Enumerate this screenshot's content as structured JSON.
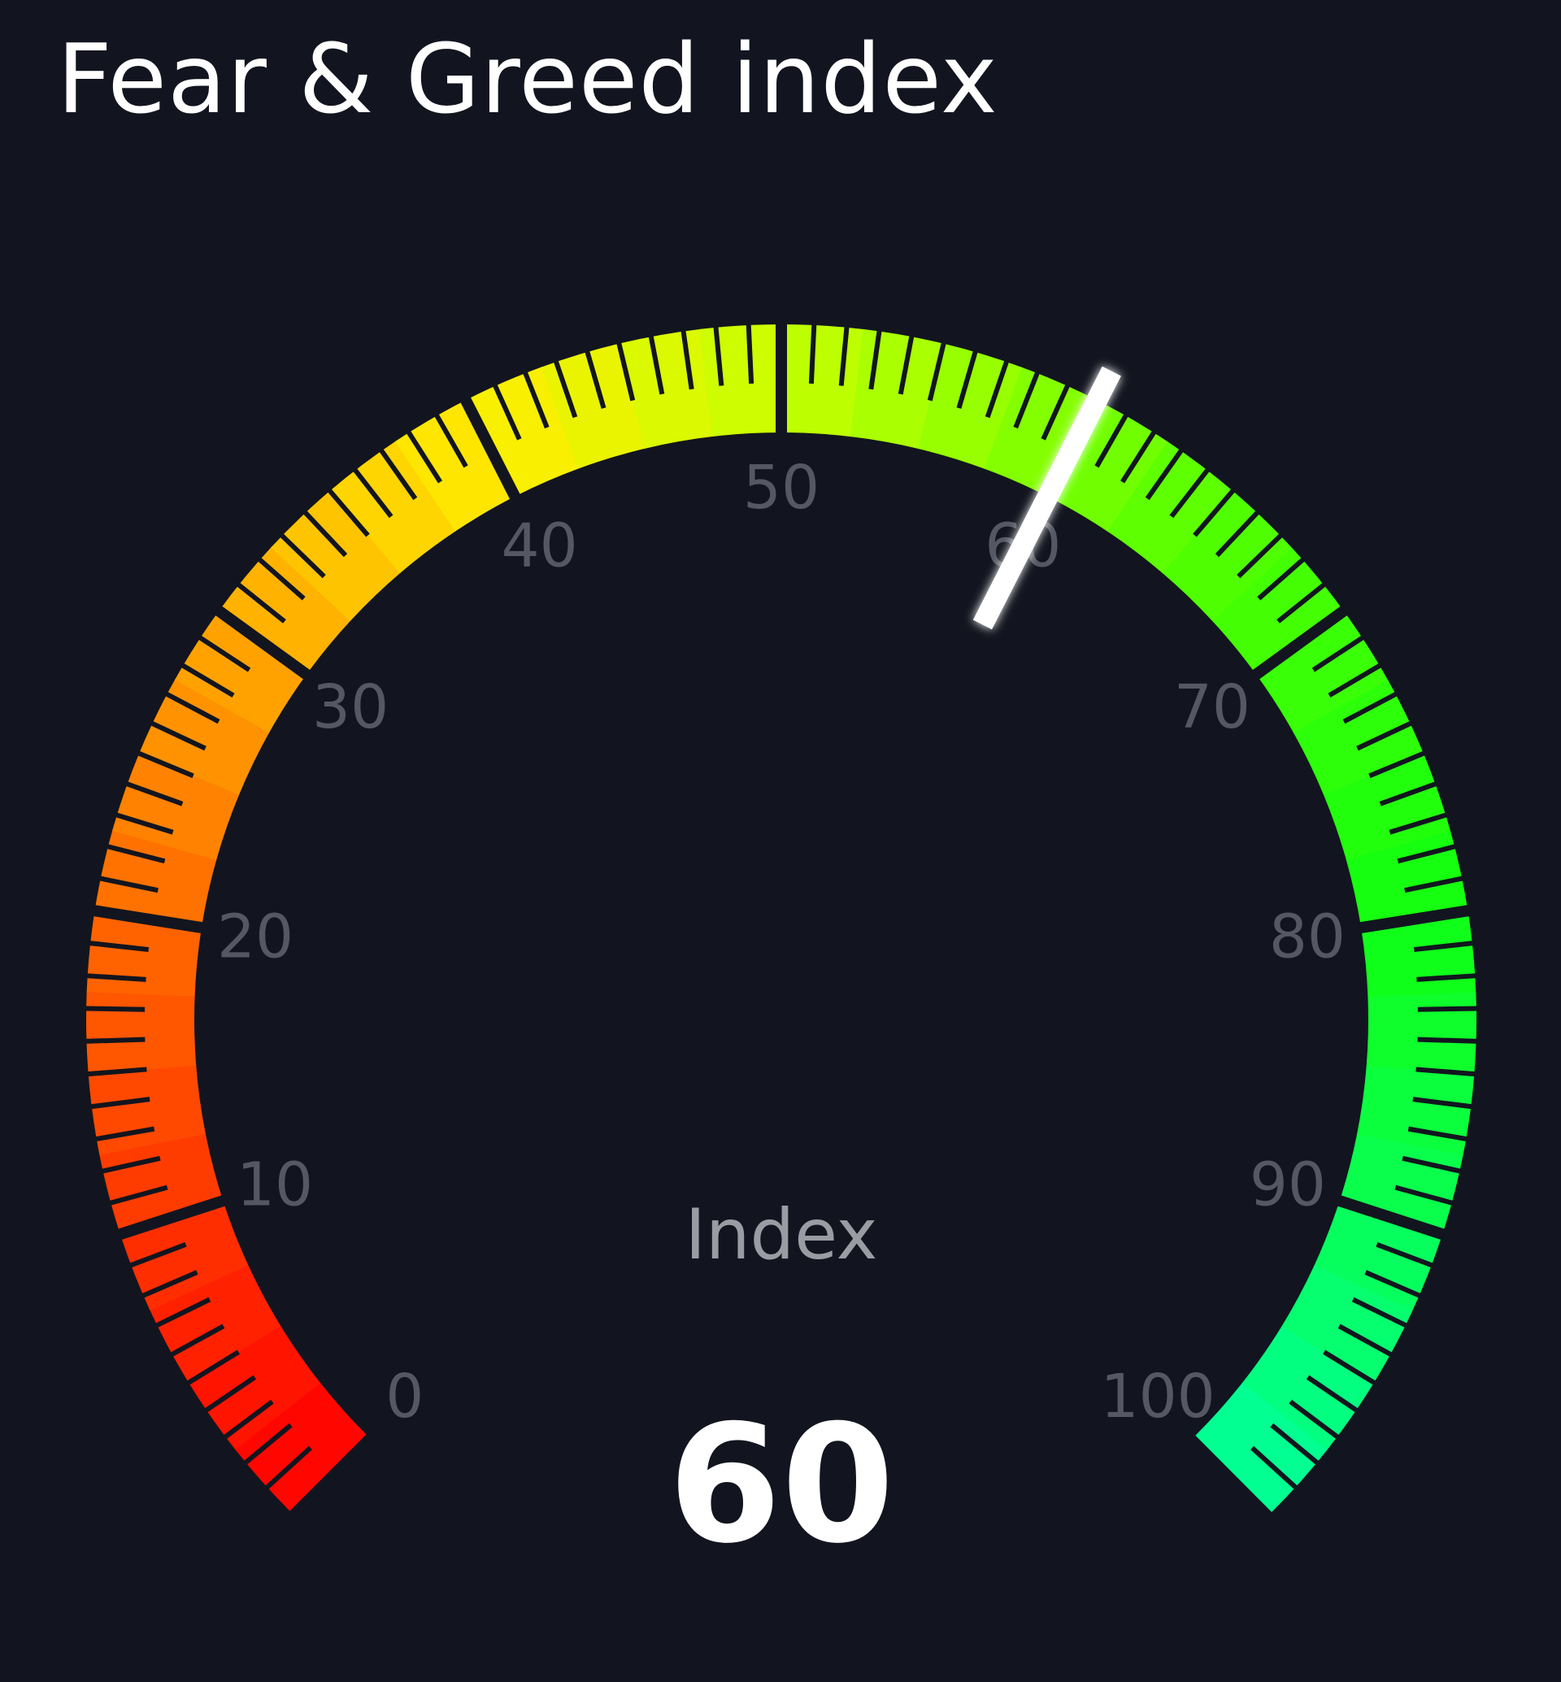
{
  "title": "Fear & Greed index",
  "chart_data": {
    "type": "gauge",
    "title": "Fear & Greed index",
    "min": 0,
    "max": 100,
    "value": 60,
    "value_label": "60",
    "center_label": "Index",
    "major_ticks": [
      0,
      10,
      20,
      30,
      40,
      50,
      60,
      70,
      80,
      90,
      100
    ],
    "tick_labels": [
      "0",
      "10",
      "20",
      "30",
      "40",
      "50",
      "60",
      "70",
      "80",
      "90",
      "100"
    ],
    "minor_tick_step": 1,
    "color_stops": [
      {
        "at": 0,
        "color": "#ff0000"
      },
      {
        "at": 20,
        "color": "#ff6a00"
      },
      {
        "at": 30,
        "color": "#ffaa00"
      },
      {
        "at": 40,
        "color": "#ffee00"
      },
      {
        "at": 50,
        "color": "#c6ff00"
      },
      {
        "at": 65,
        "color": "#55ff00"
      },
      {
        "at": 80,
        "color": "#11ff11"
      },
      {
        "at": 100,
        "color": "#00ff99"
      }
    ],
    "background": "#12151f",
    "needle_color": "#ffffff",
    "label_color": "#555862"
  }
}
